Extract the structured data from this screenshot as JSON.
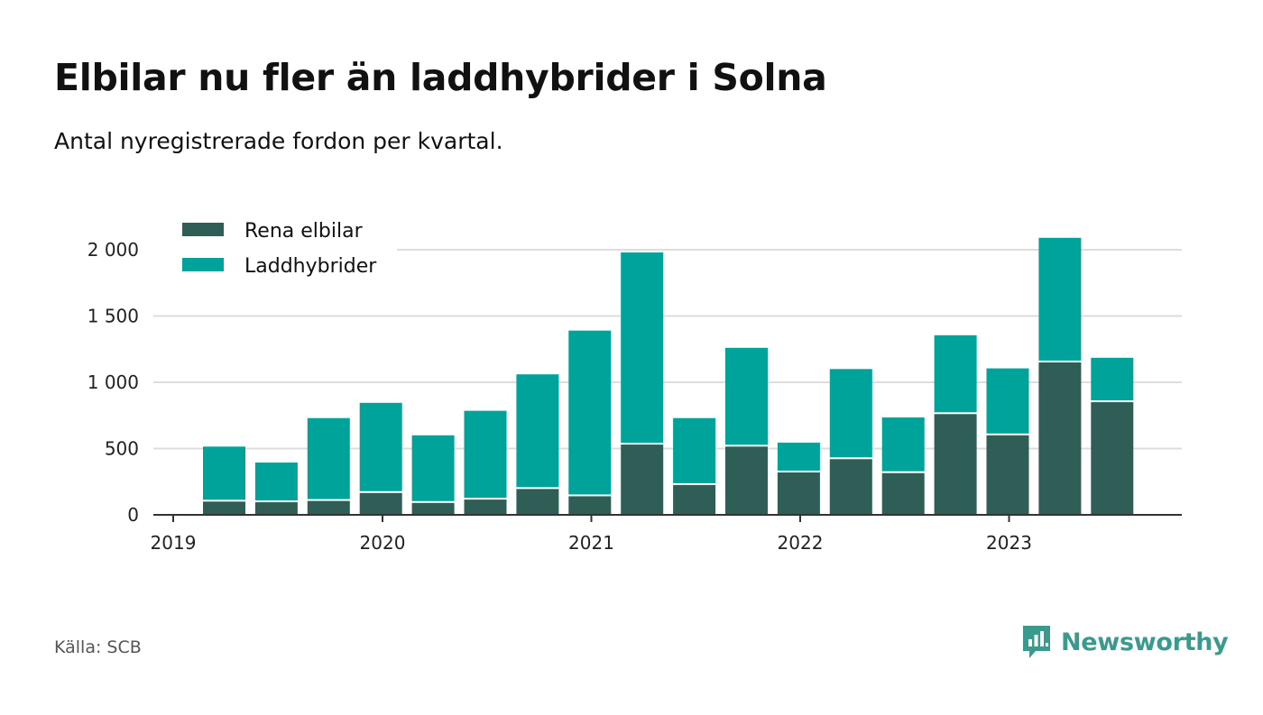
{
  "title": "Elbilar nu fler än laddhybrider i Solna",
  "subtitle": "Antal nyregistrerade fordon per kvartal.",
  "source": "Källa: SCB",
  "brand": {
    "name": "Newsworthy",
    "icon": "newsworthy-logo-icon"
  },
  "colors": {
    "elbilar": "#2f5e56",
    "laddhybrider": "#00a39a",
    "grid": "#dddddd",
    "axis": "#333333"
  },
  "chart_data": {
    "type": "bar",
    "stacked": true,
    "title": "Elbilar nu fler än laddhybrider i Solna",
    "subtitle": "Antal nyregistrerade fordon per kvartal.",
    "xlabel": "",
    "ylabel": "",
    "ylim": [
      0,
      2000
    ],
    "yticks": [
      0,
      500,
      1000,
      1500,
      2000
    ],
    "ytick_labels": [
      "0",
      "500",
      "1 000",
      "1 500",
      "2 000"
    ],
    "xticks": [
      "2019",
      "2020",
      "2021",
      "2022",
      "2023"
    ],
    "legend_position": "top-left",
    "categories": [
      "2019 Q2",
      "2019 Q3",
      "2019 Q4",
      "2020 Q1",
      "2020 Q2",
      "2020 Q3",
      "2020 Q4",
      "2021 Q1",
      "2021 Q2",
      "2021 Q3",
      "2021 Q4",
      "2022 Q1",
      "2022 Q2",
      "2022 Q3",
      "2022 Q4",
      "2023 Q1",
      "2023 Q2",
      "2023 Q3"
    ],
    "series": [
      {
        "name": "Rena elbilar",
        "values": [
          100,
          95,
          105,
          165,
          90,
          115,
          195,
          140,
          530,
          225,
          515,
          320,
          420,
          315,
          760,
          600,
          1150,
          850
        ]
      },
      {
        "name": "Laddhybrider",
        "values": [
          415,
          300,
          625,
          680,
          510,
          670,
          865,
          1250,
          1450,
          505,
          745,
          225,
          680,
          420,
          595,
          505,
          940,
          335
        ]
      }
    ]
  }
}
